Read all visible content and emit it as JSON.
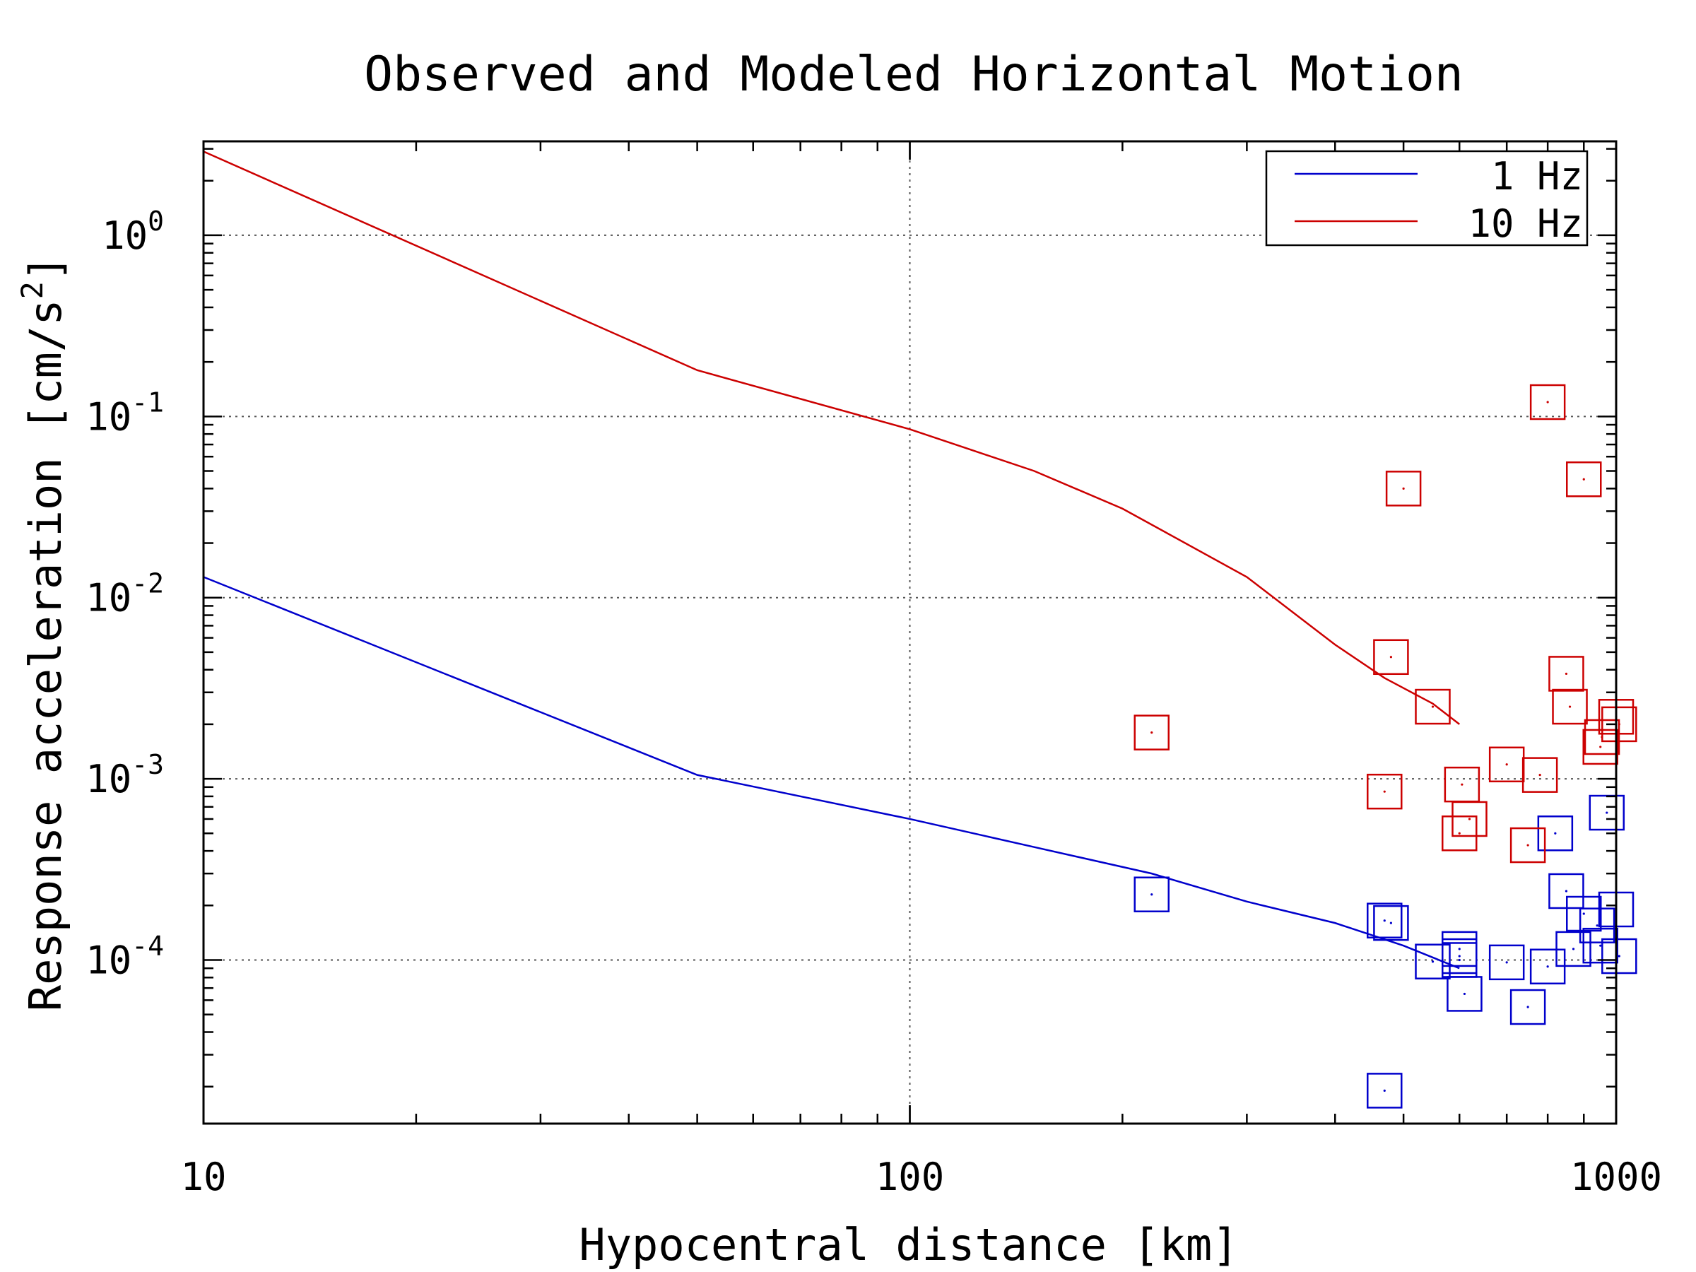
{
  "chart_data": {
    "type": "scatter",
    "title": "Observed and Modeled Horizontal Motion",
    "xlabel": "Hypocentral distance [km]",
    "ylabel": "Response acceleration [cm/s",
    "ylabel_exp": "2",
    "ylabel_end": "]",
    "x_scale": "log",
    "y_scale": "log",
    "xlim": [
      10,
      1000
    ],
    "ylim": [
      1.25e-05,
      3.3
    ],
    "x_ticks": [
      {
        "value": 10,
        "label": "10"
      },
      {
        "value": 100,
        "label": "100"
      },
      {
        "value": 1000,
        "label": "1000"
      }
    ],
    "y_ticks": [
      {
        "value": 1,
        "base": "10",
        "exp": "0"
      },
      {
        "value": 0.1,
        "base": "10",
        "exp": "-1"
      },
      {
        "value": 0.01,
        "base": "10",
        "exp": "-2"
      },
      {
        "value": 0.001,
        "base": "10",
        "exp": "-3"
      },
      {
        "value": 0.0001,
        "base": "10",
        "exp": "-4"
      }
    ],
    "grid": true,
    "legend_position": "top-right",
    "series": [
      {
        "name": "1 Hz",
        "color": "#0000cc",
        "line": {
          "x": [
            10,
            50,
            100,
            150,
            220,
            300,
            400,
            500,
            600
          ],
          "y": [
            0.013,
            0.00105,
            0.0006,
            0.00042,
            0.0003,
            0.00021,
            0.00016,
            0.00012,
            9e-05
          ]
        },
        "points": {
          "x": [
            220,
            470,
            480,
            550,
            600,
            600,
            610,
            700,
            800,
            820,
            850,
            870,
            900,
            940,
            950,
            970,
            1000,
            1010,
            600,
            750,
            470
          ],
          "y": [
            0.00023,
            0.000165,
            0.00016,
            9.8e-05,
            0.000105,
            0.0001,
            6.5e-05,
            9.7e-05,
            9.2e-05,
            0.0005,
            0.00024,
            0.000115,
            0.00018,
            0.000155,
            0.00012,
            0.00065,
            0.00019,
            0.000105,
            0.000115,
            5.5e-05,
            1.9e-05
          ]
        }
      },
      {
        "name": "10 Hz",
        "color": "#cc0000",
        "line": {
          "x": [
            10,
            50,
            100,
            150,
            200,
            300,
            400,
            470,
            550,
            600
          ],
          "y": [
            2.9,
            0.18,
            0.085,
            0.05,
            0.031,
            0.013,
            0.0055,
            0.0036,
            0.0026,
            0.002
          ]
        },
        "points": {
          "x": [
            220,
            470,
            480,
            500,
            550,
            600,
            620,
            700,
            750,
            780,
            800,
            850,
            860,
            900,
            950,
            955,
            1000,
            1010,
            605
          ],
          "y": [
            0.0018,
            0.00085,
            0.0047,
            0.04,
            0.0025,
            0.0005,
            0.0006,
            0.0012,
            0.00043,
            0.00105,
            0.12,
            0.0038,
            0.0025,
            0.045,
            0.0015,
            0.0017,
            0.0022,
            0.002,
            0.00093
          ]
        }
      }
    ]
  }
}
